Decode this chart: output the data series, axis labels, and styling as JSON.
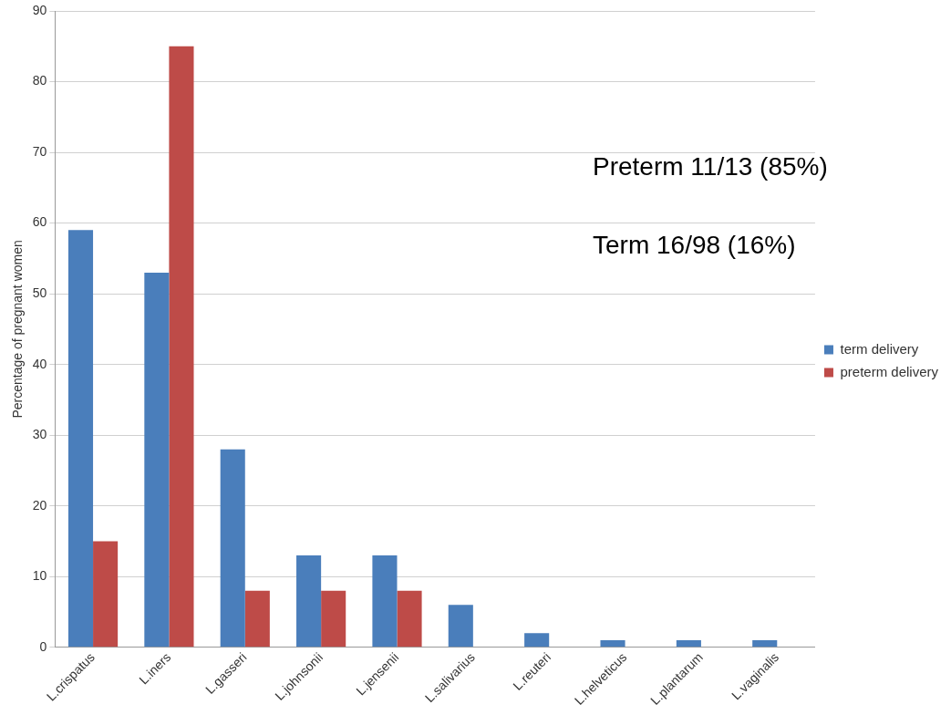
{
  "chart_data": {
    "type": "bar",
    "ylabel": "Percentage of pregnant women",
    "categories": [
      "L.crispatus",
      "L.iners",
      "L.gasseri",
      "L.johnsonii",
      "L.jensenii",
      "L.salivarius",
      "L.reuteri",
      "L.helveticus",
      "L.plantarum",
      "L.vaginalis"
    ],
    "series": [
      {
        "name": "term delivery",
        "color": "#4a7ebb",
        "values": [
          59,
          53,
          28,
          13,
          13,
          6,
          2,
          1,
          1,
          1
        ]
      },
      {
        "name": "preterm delivery",
        "color": "#be4b48",
        "values": [
          15,
          85,
          8,
          8,
          8,
          null,
          null,
          null,
          null,
          null
        ]
      }
    ],
    "ylim": [
      0,
      90
    ],
    "yticks": [
      0,
      10,
      20,
      30,
      40,
      50,
      60,
      70,
      80,
      90
    ],
    "grid": "y",
    "legend": "right",
    "annotations": [
      "Preterm 11/13 (85%)",
      "Term 16/98 (16%)"
    ]
  }
}
